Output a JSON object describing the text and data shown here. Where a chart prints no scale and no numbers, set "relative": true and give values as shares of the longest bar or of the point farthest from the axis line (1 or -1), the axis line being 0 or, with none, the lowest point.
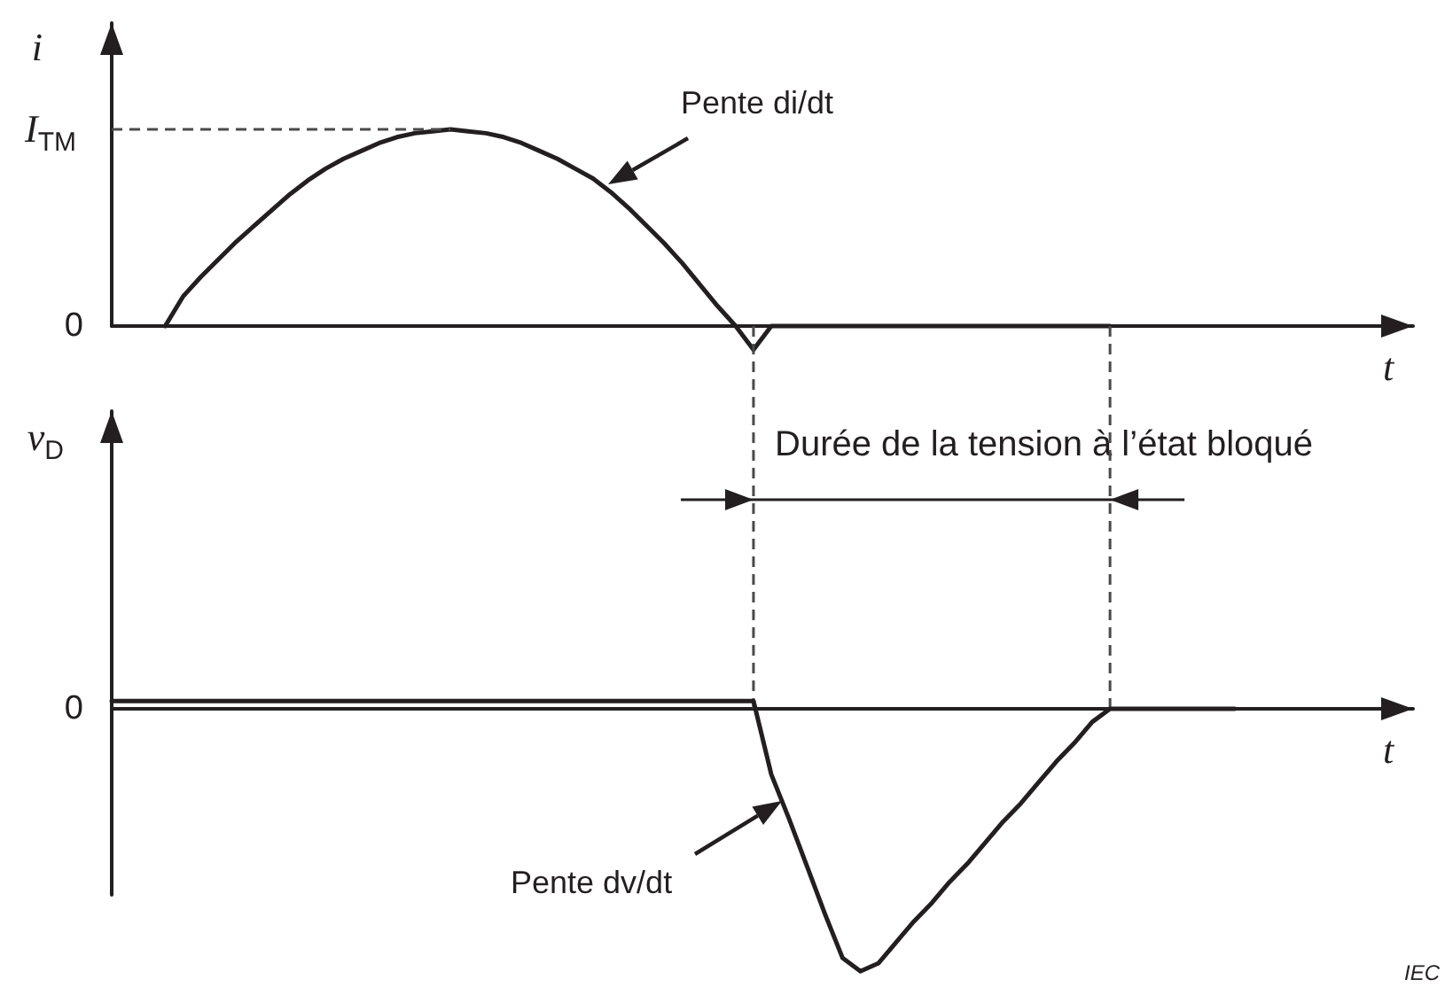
{
  "chart_data": [
    {
      "type": "line",
      "ylabel": "i",
      "xlabel": "t",
      "relative": true,
      "categories": [
        null,
        null,
        null,
        null,
        null,
        null,
        null,
        null,
        null,
        null,
        null,
        null,
        null,
        null,
        null,
        null,
        null,
        null,
        null,
        null,
        null,
        null,
        null,
        null,
        null,
        null,
        null,
        null,
        null,
        null,
        null,
        null,
        null,
        null,
        null,
        null,
        null,
        null,
        null,
        null,
        null,
        null,
        null,
        null,
        null,
        null,
        null,
        null,
        null,
        null,
        null,
        null,
        null,
        null,
        null,
        null,
        null,
        null,
        null,
        null,
        null,
        null,
        null,
        null,
        null,
        null,
        null,
        null,
        null,
        null,
        null,
        null,
        null,
        null
      ],
      "series": [
        {
          "color": "#231f20",
          "values": [
            null,
            null,
            null,
            0,
            0.15,
            0.25,
            0.34,
            0.43,
            0.51,
            0.59,
            0.67,
            0.74,
            0.8,
            0.85,
            0.89,
            0.93,
            0.96,
            0.98,
            0.99,
            1,
            0.99,
            0.98,
            0.96,
            0.93,
            0.89,
            0.85,
            0.8,
            0.75,
            0.68,
            0.6,
            0.51,
            0.42,
            0.32,
            0.21,
            0.1,
            0,
            -0.12,
            0,
            0,
            0,
            0,
            0,
            0,
            0,
            0,
            0,
            0,
            0,
            0,
            0,
            0,
            0,
            0,
            0,
            0,
            0,
            0,
            null,
            null,
            null,
            null,
            null,
            null,
            null,
            null,
            null,
            null,
            null,
            null,
            null,
            null,
            null,
            null,
            null
          ]
        }
      ],
      "ref_lines": [
        {
          "axis": "y",
          "value": 1,
          "label": "I$_{TM}$",
          "line_style": "dashed"
        }
      ],
      "annotations": [
        "0",
        "Pente di/dt"
      ]
    },
    {
      "type": "line",
      "ylabel": "v$_{D}$",
      "xlabel": "t",
      "relative": true,
      "categories": [
        null,
        null,
        null,
        null,
        null,
        null,
        null,
        null,
        null,
        null,
        null,
        null,
        null,
        null,
        null,
        null,
        null,
        null,
        null,
        null,
        null,
        null,
        null,
        null,
        null,
        null,
        null,
        null,
        null,
        null,
        null,
        null,
        null,
        null,
        null,
        null,
        null,
        null,
        null,
        null,
        null,
        null,
        null,
        null,
        null,
        null,
        null,
        null,
        null,
        null,
        null,
        null,
        null,
        null,
        null,
        null,
        null,
        null,
        null,
        null,
        null,
        null,
        null,
        null,
        null,
        null,
        null,
        null,
        null,
        null,
        null,
        null,
        null,
        null
      ],
      "series": [
        {
          "color": "#231f20",
          "values": [
            0.03,
            0.03,
            0.03,
            0.03,
            0.03,
            0.03,
            0.03,
            0.03,
            0.03,
            0.03,
            0.03,
            0.03,
            0.03,
            0.03,
            0.03,
            0.03,
            0.03,
            0.03,
            0.03,
            0.03,
            0.03,
            0.03,
            0.03,
            0.03,
            0.03,
            0.03,
            0.03,
            0.03,
            0.03,
            0.03,
            0.03,
            0.03,
            0.03,
            0.03,
            0.03,
            0.03,
            0.03,
            -0.25,
            -0.42,
            -0.6,
            -0.78,
            -0.95,
            -1,
            -0.97,
            -0.89,
            -0.81,
            -0.74,
            -0.66,
            -0.59,
            -0.51,
            -0.43,
            -0.36,
            -0.28,
            -0.2,
            -0.13,
            -0.05,
            0,
            0,
            0,
            0,
            0,
            0,
            0,
            0,
            null,
            null,
            null,
            null,
            null,
            null,
            null,
            null,
            null,
            null
          ]
        }
      ],
      "annotations": [
        "0",
        "Durée de la tension à l’état bloqué",
        "Pente dv/dt",
        "IEC"
      ]
    }
  ]
}
